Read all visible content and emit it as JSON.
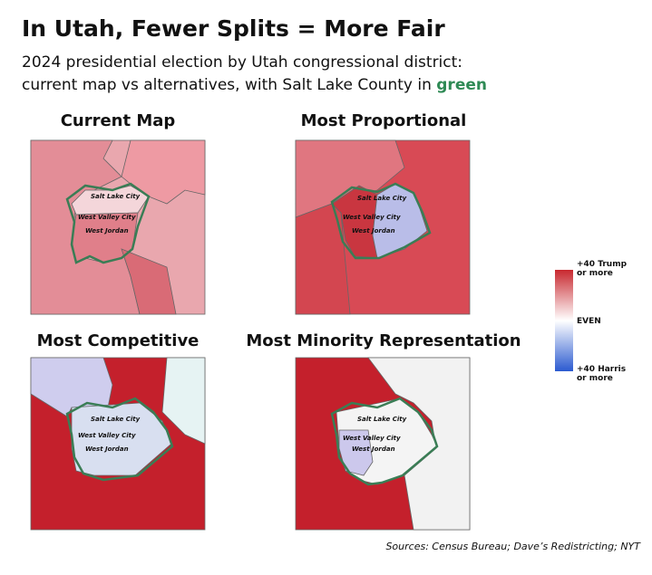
{
  "header": {
    "title": "In Utah, Fewer Splits = More Fair",
    "subtitle": [
      "2024 presidential election by Utah congressional district:",
      "current map vs alternatives, with Salt Lake County in",
      "green"
    ]
  },
  "panels": [
    {
      "title": "Current Map",
      "cities": [
        "Salt Lake City",
        "West Valley City",
        "West Jordan"
      ]
    },
    {
      "title": "Most Proportional",
      "cities": [
        "Salt Lake City",
        "West Valley City",
        "West Jordan"
      ]
    },
    {
      "title": "Most Competitive",
      "cities": [
        "Salt Lake City",
        "West Valley City",
        "West Jordan"
      ]
    },
    {
      "title": "Most Minority Representation",
      "cities": [
        "Salt Lake City",
        "West Valley City",
        "West Jordan"
      ]
    }
  ],
  "legend": {
    "top": [
      "+40 Trump",
      "or more"
    ],
    "middle": "EVEN",
    "bottom": [
      "+40 Harris",
      "or more"
    ]
  },
  "source": "Sources: Census Bureau; Dave’s Redistricting; NYT"
}
